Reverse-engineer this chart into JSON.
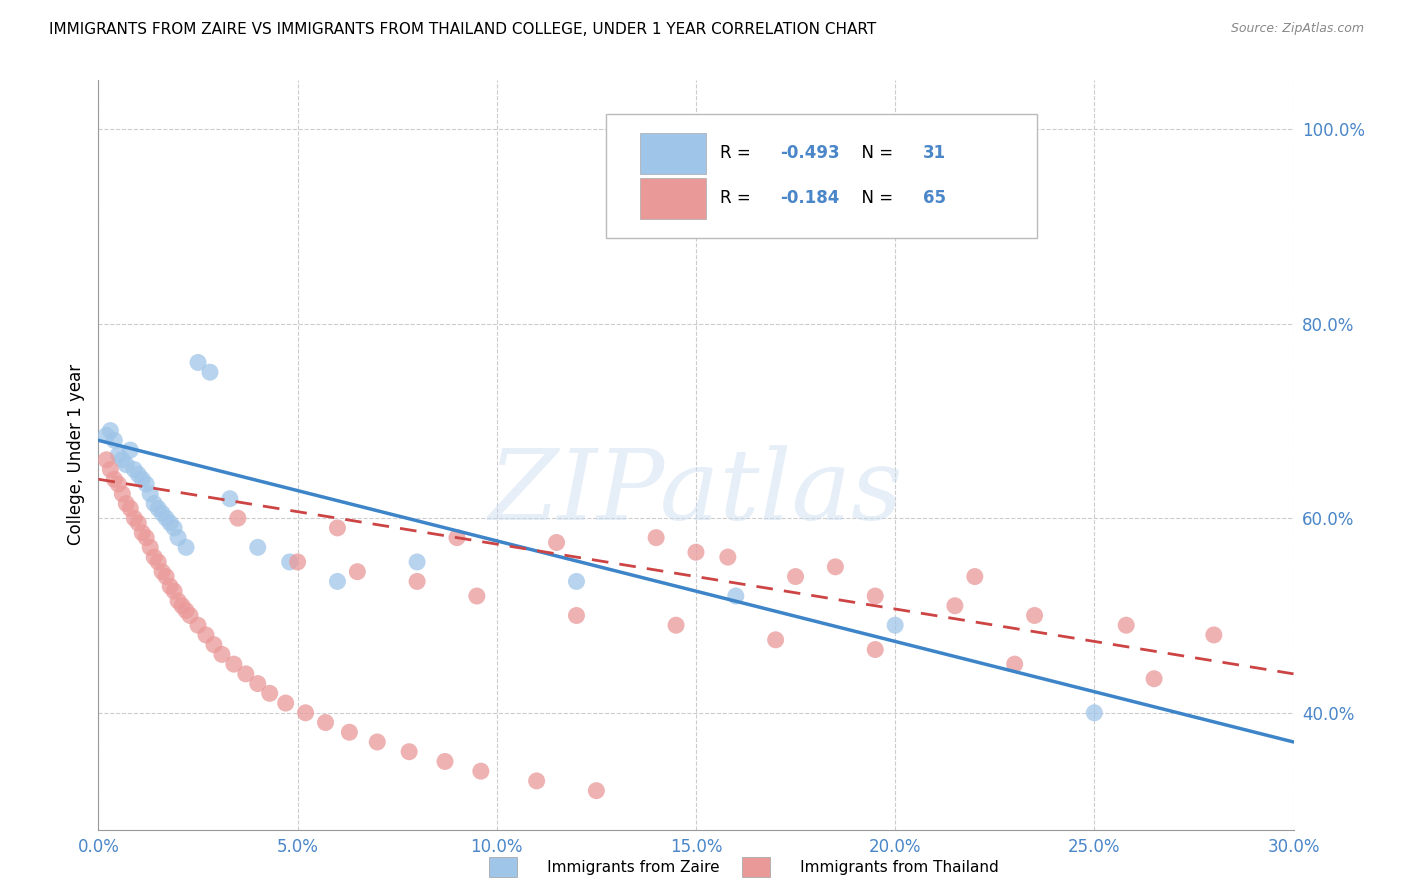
{
  "title": "IMMIGRANTS FROM ZAIRE VS IMMIGRANTS FROM THAILAND COLLEGE, UNDER 1 YEAR CORRELATION CHART",
  "source": "Source: ZipAtlas.com",
  "ylabel_label": "College, Under 1 year",
  "legend_zaire": "Immigrants from Zaire",
  "legend_thailand": "Immigrants from Thailand",
  "r_zaire": "-0.493",
  "n_zaire": "31",
  "r_thailand": "-0.184",
  "n_thailand": "65",
  "watermark": "ZIPatlas",
  "color_zaire": "#9fc5e8",
  "color_thailand": "#ea9999",
  "color_zaire_line": "#3d85c8",
  "color_thailand_line": "#cc4444",
  "color_axis_label": "#4a86c8",
  "xmin": 0.0,
  "xmax": 0.3,
  "ymin": 0.28,
  "ymax": 1.05,
  "ytick_vals": [
    0.4,
    0.6,
    0.8,
    1.0
  ],
  "xtick_vals": [
    0.0,
    0.05,
    0.1,
    0.15,
    0.2,
    0.25,
    0.3
  ],
  "zaire_x": [
    0.002,
    0.003,
    0.004,
    0.005,
    0.006,
    0.007,
    0.008,
    0.009,
    0.01,
    0.011,
    0.012,
    0.013,
    0.014,
    0.015,
    0.016,
    0.017,
    0.018,
    0.019,
    0.02,
    0.022,
    0.025,
    0.028,
    0.033,
    0.04,
    0.048,
    0.06,
    0.08,
    0.12,
    0.16,
    0.2,
    0.25
  ],
  "zaire_y": [
    0.685,
    0.69,
    0.68,
    0.665,
    0.66,
    0.655,
    0.67,
    0.65,
    0.645,
    0.64,
    0.635,
    0.625,
    0.615,
    0.61,
    0.605,
    0.6,
    0.595,
    0.59,
    0.58,
    0.57,
    0.76,
    0.75,
    0.62,
    0.57,
    0.555,
    0.535,
    0.555,
    0.535,
    0.52,
    0.49,
    0.4
  ],
  "thailand_x": [
    0.002,
    0.003,
    0.004,
    0.005,
    0.006,
    0.007,
    0.008,
    0.009,
    0.01,
    0.011,
    0.012,
    0.013,
    0.014,
    0.015,
    0.016,
    0.017,
    0.018,
    0.019,
    0.02,
    0.021,
    0.022,
    0.023,
    0.025,
    0.027,
    0.029,
    0.031,
    0.034,
    0.037,
    0.04,
    0.043,
    0.047,
    0.052,
    0.057,
    0.063,
    0.07,
    0.078,
    0.087,
    0.096,
    0.11,
    0.125,
    0.14,
    0.158,
    0.175,
    0.195,
    0.215,
    0.235,
    0.258,
    0.28,
    0.05,
    0.065,
    0.08,
    0.095,
    0.12,
    0.145,
    0.17,
    0.195,
    0.23,
    0.265,
    0.035,
    0.06,
    0.09,
    0.115,
    0.15,
    0.185,
    0.22
  ],
  "thailand_y": [
    0.66,
    0.65,
    0.64,
    0.635,
    0.625,
    0.615,
    0.61,
    0.6,
    0.595,
    0.585,
    0.58,
    0.57,
    0.56,
    0.555,
    0.545,
    0.54,
    0.53,
    0.525,
    0.515,
    0.51,
    0.505,
    0.5,
    0.49,
    0.48,
    0.47,
    0.46,
    0.45,
    0.44,
    0.43,
    0.42,
    0.41,
    0.4,
    0.39,
    0.38,
    0.37,
    0.36,
    0.35,
    0.34,
    0.33,
    0.32,
    0.58,
    0.56,
    0.54,
    0.52,
    0.51,
    0.5,
    0.49,
    0.48,
    0.555,
    0.545,
    0.535,
    0.52,
    0.5,
    0.49,
    0.475,
    0.465,
    0.45,
    0.435,
    0.6,
    0.59,
    0.58,
    0.575,
    0.565,
    0.55,
    0.54
  ],
  "zaire_line_x0": 0.0,
  "zaire_line_y0": 0.68,
  "zaire_line_x1": 0.3,
  "zaire_line_y1": 0.37,
  "thailand_line_x0": 0.0,
  "thailand_line_y0": 0.64,
  "thailand_line_x1": 0.3,
  "thailand_line_y1": 0.44
}
